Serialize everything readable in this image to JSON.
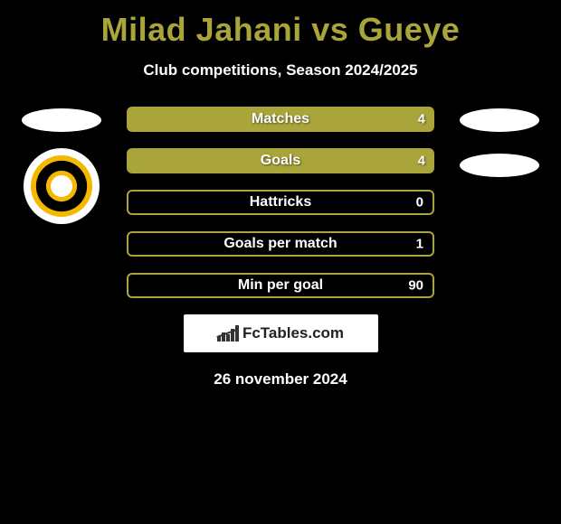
{
  "title_color": "#a9a53a",
  "title": "Milad Jahani vs Gueye",
  "subtitle": "Club competitions, Season 2024/2025",
  "bar_fill_color": "#a9a53a",
  "bar_border_color": "#a9a53a",
  "stats": [
    {
      "label": "Matches",
      "value": "4",
      "fill_pct": 100,
      "outlined": false
    },
    {
      "label": "Goals",
      "value": "4",
      "fill_pct": 100,
      "outlined": false
    },
    {
      "label": "Hattricks",
      "value": "0",
      "fill_pct": 0,
      "outlined": true
    },
    {
      "label": "Goals per match",
      "value": "1",
      "fill_pct": 0,
      "outlined": true
    },
    {
      "label": "Min per goal",
      "value": "90",
      "fill_pct": 0,
      "outlined": true
    }
  ],
  "left_ellipse_color": "#ffffff",
  "right_ellipse_color": "#ffffff",
  "club_badge_bg": "#ffffff",
  "fctables_label": "FcTables.com",
  "date": "26 november 2024",
  "background_color": "#000000",
  "text_color": "#ffffff"
}
